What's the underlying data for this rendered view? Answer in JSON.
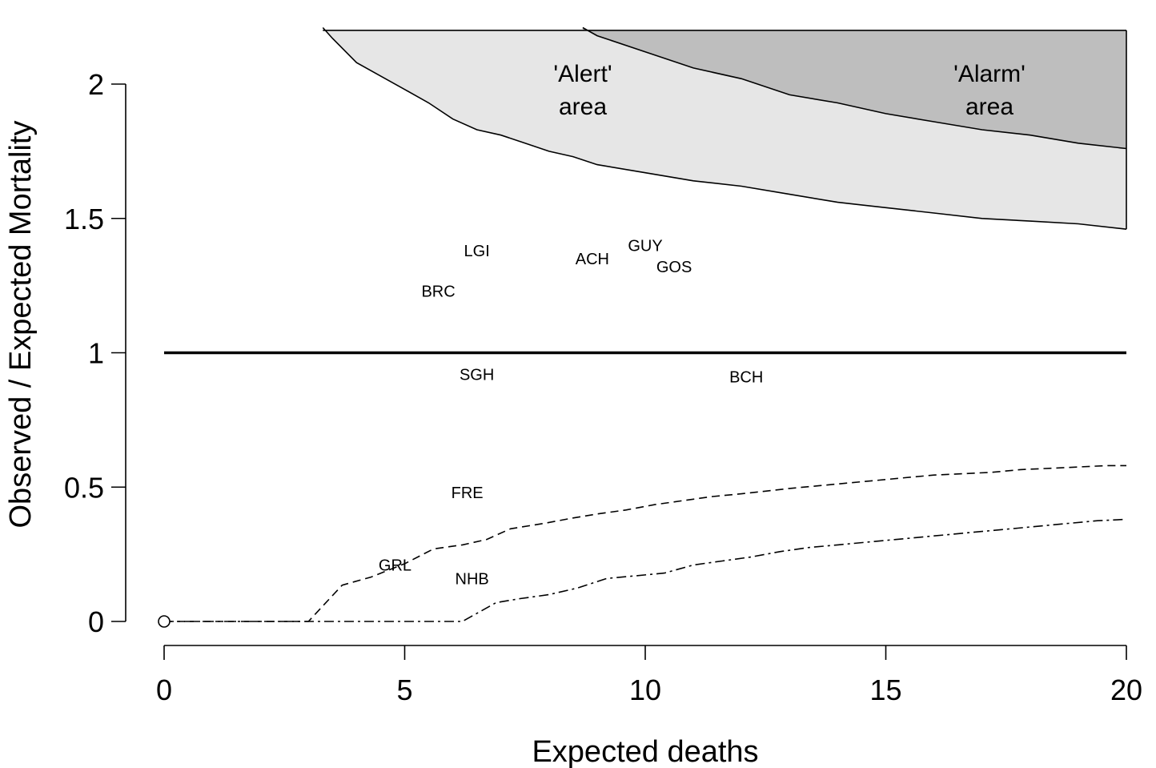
{
  "chart_data": {
    "type": "line",
    "xlabel": "Expected deaths",
    "ylabel": "Observed / Expected Mortality",
    "xlim": [
      0,
      20
    ],
    "ylim": [
      0,
      2.2
    ],
    "x_ticks": [
      "0",
      "5",
      "10",
      "15",
      "20"
    ],
    "y_ticks": [
      "0",
      "0.5",
      "1",
      "1.5",
      "2"
    ],
    "reference_line_y": 1.0,
    "origin_point": [
      0,
      0
    ],
    "area_labels": {
      "alert_line1": "'Alert'",
      "alert_line2": "area",
      "alarm_line1": "'Alarm'",
      "alarm_line2": "area"
    },
    "alert_boundary": {
      "x": [
        3.3,
        3.5,
        4.0,
        4.5,
        5.0,
        5.5,
        6.0,
        6.5,
        7.0,
        7.5,
        8.0,
        8.5,
        9.0,
        10.0,
        11.0,
        12.0,
        13.0,
        14.0,
        15.0,
        16.0,
        17.0,
        18.0,
        19.0,
        20.0
      ],
      "y": [
        2.21,
        2.17,
        2.08,
        2.03,
        1.98,
        1.93,
        1.87,
        1.83,
        1.81,
        1.78,
        1.75,
        1.73,
        1.7,
        1.67,
        1.64,
        1.62,
        1.59,
        1.56,
        1.54,
        1.52,
        1.5,
        1.49,
        1.48,
        1.46
      ]
    },
    "alarm_boundary": {
      "x": [
        8.7,
        9.0,
        10.0,
        11.0,
        12.0,
        13.0,
        14.0,
        15.0,
        16.0,
        17.0,
        18.0,
        19.0,
        20.0
      ],
      "y": [
        2.21,
        2.18,
        2.12,
        2.06,
        2.02,
        1.96,
        1.93,
        1.89,
        1.86,
        1.83,
        1.81,
        1.78,
        1.76
      ]
    },
    "lower_dashed": {
      "x": [
        0,
        3.0,
        3.7,
        4.3,
        5.0,
        5.6,
        6.2,
        6.7,
        7.2,
        7.9,
        8.5,
        9.0,
        9.6,
        10.2,
        10.8,
        11.4,
        12.0,
        12.5,
        13.0,
        13.6,
        14.2,
        14.8,
        15.4,
        16.0,
        16.6,
        17.2,
        17.8,
        18.4,
        19.0,
        19.6,
        20.0
      ],
      "y": [
        0,
        0,
        0.135,
        0.165,
        0.215,
        0.27,
        0.285,
        0.305,
        0.345,
        0.365,
        0.385,
        0.4,
        0.415,
        0.435,
        0.45,
        0.465,
        0.475,
        0.485,
        0.495,
        0.505,
        0.515,
        0.525,
        0.535,
        0.545,
        0.55,
        0.555,
        0.565,
        0.57,
        0.575,
        0.58,
        0.58
      ]
    },
    "lower_dotdash": {
      "x": [
        0,
        6.2,
        6.9,
        7.4,
        8.0,
        8.6,
        9.2,
        9.8,
        10.4,
        11.0,
        11.6,
        12.2,
        12.8,
        13.4,
        14.0,
        14.6,
        15.2,
        15.8,
        16.4,
        17.0,
        17.6,
        18.2,
        18.8,
        19.4,
        20.0
      ],
      "y": [
        0,
        0,
        0.07,
        0.085,
        0.1,
        0.125,
        0.16,
        0.17,
        0.18,
        0.21,
        0.225,
        0.24,
        0.26,
        0.275,
        0.285,
        0.295,
        0.305,
        0.315,
        0.325,
        0.335,
        0.345,
        0.355,
        0.365,
        0.375,
        0.38
      ]
    },
    "points": [
      {
        "label": "LGI",
        "x": 6.5,
        "y": 1.38
      },
      {
        "label": "BRC",
        "x": 5.7,
        "y": 1.23
      },
      {
        "label": "ACH",
        "x": 8.9,
        "y": 1.35
      },
      {
        "label": "GUY",
        "x": 10.0,
        "y": 1.4
      },
      {
        "label": "GOS",
        "x": 10.6,
        "y": 1.32
      },
      {
        "label": "SGH",
        "x": 6.5,
        "y": 0.92
      },
      {
        "label": "BCH",
        "x": 12.1,
        "y": 0.91
      },
      {
        "label": "FRE",
        "x": 6.3,
        "y": 0.48
      },
      {
        "label": "GRL",
        "x": 4.8,
        "y": 0.21
      },
      {
        "label": "NHB",
        "x": 6.4,
        "y": 0.16
      }
    ]
  }
}
